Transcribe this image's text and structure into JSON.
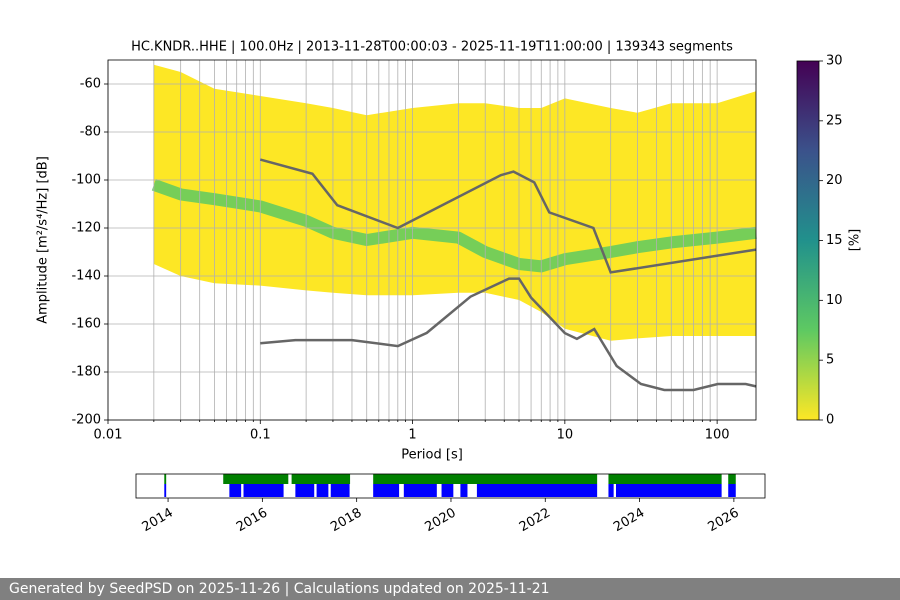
{
  "chart_data": [
    {
      "type": "ppsd",
      "title": "HC.KNDR..HHE | 100.0Hz | 2013-11-28T00:00:03 - 2025-11-19T11:00:00 | 139343 segments",
      "xlabel": "Period [s]",
      "ylabel": "Amplitude [m²/s⁴/Hz] [dB]",
      "log_x": true,
      "grid": true,
      "xlim": [
        0.01,
        180
      ],
      "ylim": [
        -200,
        -50
      ],
      "xticks": [
        0.01,
        0.1,
        1,
        10,
        100
      ],
      "xminorticks": [
        0.02,
        0.03,
        0.04,
        0.05,
        0.06,
        0.07,
        0.08,
        0.09,
        0.2,
        0.3,
        0.4,
        0.5,
        0.6,
        0.7,
        0.8,
        0.9,
        2,
        3,
        4,
        5,
        6,
        7,
        8,
        9,
        20,
        30,
        40,
        50,
        60,
        70,
        80,
        90
      ],
      "yticks": [
        -200,
        -180,
        -160,
        -140,
        -120,
        -100,
        -80,
        -60
      ],
      "density": {
        "periods": [
          0.02,
          0.03,
          0.05,
          0.1,
          0.2,
          0.3,
          0.5,
          1,
          2,
          3,
          5,
          7,
          10,
          20,
          30,
          50,
          100,
          180
        ],
        "upper": [
          -52,
          -55,
          -62,
          -65,
          -68,
          -70,
          -73,
          -70,
          -68,
          -68,
          -70,
          -70,
          -66,
          -70,
          -72,
          -68,
          -68,
          -63
        ],
        "lower": [
          -135,
          -140,
          -143,
          -144,
          -146,
          -147,
          -148,
          -148,
          -147,
          -147,
          -150,
          -155,
          -162,
          -167,
          -166,
          -165,
          -165,
          -165
        ],
        "mode": [
          -102,
          -106,
          -108,
          -111,
          -117,
          -122,
          -125,
          -122,
          -124,
          -130,
          -135,
          -136,
          -133,
          -130,
          -128,
          -126,
          -124,
          -122
        ],
        "color": "#fde725",
        "mode_color": "#5ec962"
      },
      "noise_models": [
        {
          "x": [
            0.1,
            0.22,
            0.32,
            0.8,
            3.8,
            4.6,
            6.3,
            7.9,
            15.4,
            20,
            180
          ],
          "values": [
            -91.5,
            -97.4,
            -110.5,
            -120,
            -98,
            -96.5,
            -101,
            -113.5,
            -120,
            -138.5,
            -129
          ]
        },
        {
          "x": [
            0.1,
            0.17,
            0.4,
            0.8,
            1.24,
            2.4,
            4.3,
            5,
            6,
            10,
            12,
            15.6,
            21.9,
            31.6,
            45,
            70,
            101,
            154,
            180
          ],
          "values": [
            -168,
            -166.7,
            -166.7,
            -169.2,
            -163.7,
            -148.6,
            -141.1,
            -141.1,
            -149,
            -163.8,
            -166.2,
            -162.1,
            -177.5,
            -185,
            -187.5,
            -187.5,
            -185,
            -185,
            -186
          ]
        }
      ],
      "noise_color": "#666666",
      "colorbar": {
        "label": "[%]",
        "lim": [
          0,
          30
        ],
        "ticks": [
          0,
          5,
          10,
          15,
          20,
          25,
          30
        ],
        "colors": [
          "#fde725",
          "#5ec962",
          "#21918c",
          "#3b528b",
          "#440154"
        ]
      }
    },
    {
      "type": "timeline",
      "xlim": [
        2013.32,
        2026.66
      ],
      "xticks": [
        2014,
        2016,
        2018,
        2020,
        2022,
        2024,
        2026
      ],
      "upper_color": "#008000",
      "lower_color": "#0000ff",
      "upper": [
        [
          2013.92,
          2013.96
        ],
        [
          2015.17,
          2016.55
        ],
        [
          2016.62,
          2017.86
        ],
        [
          2018.35,
          2023.1
        ],
        [
          2023.34,
          2025.74
        ],
        [
          2025.88,
          2026.04
        ]
      ],
      "lower": [
        [
          2013.92,
          2013.96
        ],
        [
          2015.3,
          2015.55
        ],
        [
          2015.6,
          2016.45
        ],
        [
          2016.7,
          2017.1
        ],
        [
          2017.15,
          2017.4
        ],
        [
          2017.45,
          2017.85
        ],
        [
          2018.35,
          2018.9
        ],
        [
          2019.0,
          2019.7
        ],
        [
          2019.8,
          2020.05
        ],
        [
          2020.2,
          2020.35
        ],
        [
          2020.55,
          2023.1
        ],
        [
          2023.34,
          2023.45
        ],
        [
          2023.5,
          2025.74
        ],
        [
          2025.88,
          2026.04
        ]
      ]
    }
  ],
  "footer": "Generated by SeedPSD on 2025-11-26 | Calculations updated on 2025-11-21"
}
